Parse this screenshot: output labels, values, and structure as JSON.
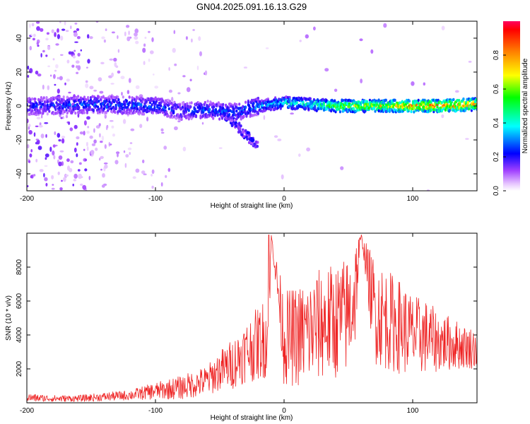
{
  "title": "GN04.2025.091.16.13.G29",
  "chart_data": [
    {
      "type": "heatmap",
      "xlabel": "Height of straight line (km)",
      "ylabel": "Frequency (Hz)",
      "xlim": [
        -200,
        150
      ],
      "ylim": [
        -50,
        50
      ],
      "x_ticks": [
        -200,
        -100,
        0,
        100
      ],
      "y_ticks": [
        -40,
        -20,
        0,
        20,
        40
      ],
      "colorbar": {
        "label": "Normalized spectral amplitude",
        "range": [
          0.0,
          1.0
        ],
        "ticks": [
          0.0,
          0.2,
          0.4,
          0.6,
          0.8
        ]
      },
      "ridge": [
        {
          "x": -190,
          "freq": 0,
          "amp": 0.25
        },
        {
          "x": -150,
          "freq": 1,
          "amp": 0.3
        },
        {
          "x": -100,
          "freq": 0,
          "amp": 0.3
        },
        {
          "x": -80,
          "freq": -3,
          "amp": 0.25
        },
        {
          "x": -60,
          "freq": -2,
          "amp": 0.3
        },
        {
          "x": -40,
          "freq": -4,
          "amp": 0.3
        },
        {
          "x": -20,
          "freq": 0,
          "amp": 0.35
        },
        {
          "x": 0,
          "freq": 2,
          "amp": 0.45
        },
        {
          "x": 20,
          "freq": 1,
          "amp": 0.5
        },
        {
          "x": 40,
          "freq": 0,
          "amp": 0.65
        },
        {
          "x": 60,
          "freq": 0,
          "amp": 0.7
        },
        {
          "x": 80,
          "freq": 0,
          "amp": 0.75
        },
        {
          "x": 100,
          "freq": 0,
          "amp": 0.85
        },
        {
          "x": 120,
          "freq": 0,
          "amp": 0.95
        },
        {
          "x": 150,
          "freq": 1,
          "amp": 0.85
        }
      ]
    },
    {
      "type": "line",
      "xlabel": "Height of straight line (km)",
      "ylabel": "SNR (10 * v/v)",
      "xlim": [
        -200,
        150
      ],
      "ylim": [
        0,
        10000
      ],
      "x_ticks": [
        -200,
        -100,
        0,
        100
      ],
      "y_ticks": [
        2000,
        4000,
        6000,
        8000
      ],
      "color": "#ee2222",
      "series": [
        {
          "x": [
            -200,
            -180,
            -160,
            -140,
            -120,
            -100,
            -90,
            -80,
            -70,
            -60,
            -50,
            -40,
            -30,
            -20,
            -12,
            -10,
            0,
            10,
            20,
            30,
            40,
            50,
            55,
            60,
            70,
            80,
            90,
            100,
            110,
            120,
            130,
            140,
            150
          ],
          "values": [
            300,
            250,
            250,
            350,
            450,
            700,
            800,
            900,
            1100,
            1300,
            1900,
            2300,
            3000,
            3500,
            4000,
            9900,
            3800,
            3900,
            4200,
            4700,
            4800,
            5200,
            6500,
            9900,
            5500,
            4900,
            4500,
            4000,
            3900,
            3600,
            3500,
            3300,
            3200
          ],
          "spread": [
            250,
            200,
            200,
            250,
            300,
            500,
            600,
            700,
            800,
            900,
            1200,
            1500,
            1800,
            2200,
            2500,
            0,
            2800,
            3000,
            3200,
            3400,
            3400,
            3500,
            3500,
            0,
            3200,
            3000,
            2800,
            2400,
            2200,
            1800,
            1600,
            1300,
            1200
          ]
        }
      ]
    }
  ]
}
